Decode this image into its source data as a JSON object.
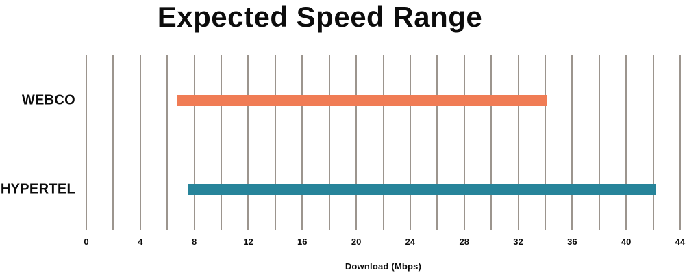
{
  "chart_data": {
    "type": "bar",
    "orientation": "horizontal",
    "title": "Expected Speed Range",
    "xlabel": "Download (Mbps)",
    "xlim": [
      0,
      44
    ],
    "x_tick_step": 4,
    "x_tick_labels": [
      "0",
      "4",
      "8",
      "12",
      "16",
      "20",
      "24",
      "28",
      "32",
      "36",
      "40",
      "44"
    ],
    "gridline_step": 2,
    "grid": true,
    "legend": "none",
    "categories": [
      "WEBCO",
      "HYPERTEL"
    ],
    "bars": [
      {
        "label": "WEBCO",
        "range_start": 6.7,
        "range_end": 34.1,
        "color": "#F07C55"
      },
      {
        "label": "HYPERTEL",
        "range_start": 7.5,
        "range_end": 42.2,
        "color": "#27849A"
      }
    ]
  },
  "colors": {
    "gridline": "#9C958E",
    "text": "#0C0C0C",
    "background": "#FFFFFF",
    "webco_bar": "#F07C55",
    "hypertel_bar": "#27849A"
  }
}
